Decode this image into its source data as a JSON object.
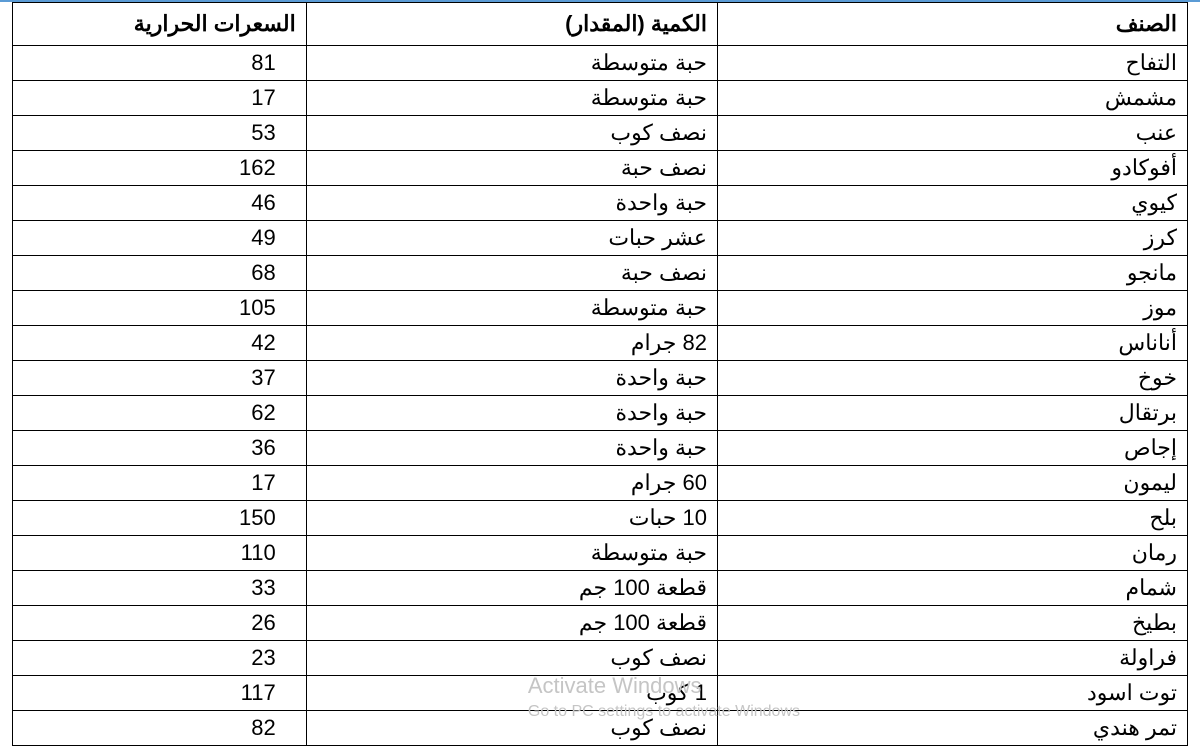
{
  "table": {
    "headers": {
      "item": "الصنف",
      "quantity": "الكمية (المقدار)",
      "calories": "السعرات الحرارية"
    },
    "rows": [
      {
        "item": "التفاح",
        "quantity": "حبة متوسطة",
        "calories": "81"
      },
      {
        "item": "مشمش",
        "quantity": "حبة متوسطة",
        "calories": "17"
      },
      {
        "item": "عنب",
        "quantity": "نصف كوب",
        "calories": "53"
      },
      {
        "item": "أفوكادو",
        "quantity": "نصف حبة",
        "calories": "162"
      },
      {
        "item": "كيوي",
        "quantity": "حبة واحدة",
        "calories": "46"
      },
      {
        "item": "كرز",
        "quantity": "عشر حبات",
        "calories": "49"
      },
      {
        "item": "مانجو",
        "quantity": "نصف حبة",
        "calories": "68"
      },
      {
        "item": "موز",
        "quantity": "حبة متوسطة",
        "calories": "105"
      },
      {
        "item": "أناناس",
        "quantity": "82 جرام",
        "calories": "42"
      },
      {
        "item": "خوخ",
        "quantity": "حبة واحدة",
        "calories": "37"
      },
      {
        "item": "برتقال",
        "quantity": "حبة واحدة",
        "calories": "62"
      },
      {
        "item": "إجاص",
        "quantity": "حبة واحدة",
        "calories": "36"
      },
      {
        "item": "ليمون",
        "quantity": "60 جرام",
        "calories": "17"
      },
      {
        "item": "بلح",
        "quantity": "10 حبات",
        "calories": "150"
      },
      {
        "item": "رمان",
        "quantity": "حبة متوسطة",
        "calories": "110"
      },
      {
        "item": "شمام",
        "quantity": "قطعة 100 جم",
        "calories": "33"
      },
      {
        "item": "بطيخ",
        "quantity": "قطعة 100 جم",
        "calories": "26"
      },
      {
        "item": "فراولة",
        "quantity": "نصف كوب",
        "calories": "23"
      },
      {
        "item": "توت اسود",
        "quantity": "1 كوب",
        "calories": "117"
      },
      {
        "item": "تمر هندي",
        "quantity": "نصف كوب",
        "calories": "82"
      }
    ]
  },
  "watermark": {
    "line1": "Activate Windows",
    "line2": "Go to PC settings to activate Windows"
  },
  "colors": {
    "top_border": "#5b9bd5",
    "cell_border": "#000000",
    "background": "#ffffff",
    "watermark_text": "#c5c5c5"
  }
}
